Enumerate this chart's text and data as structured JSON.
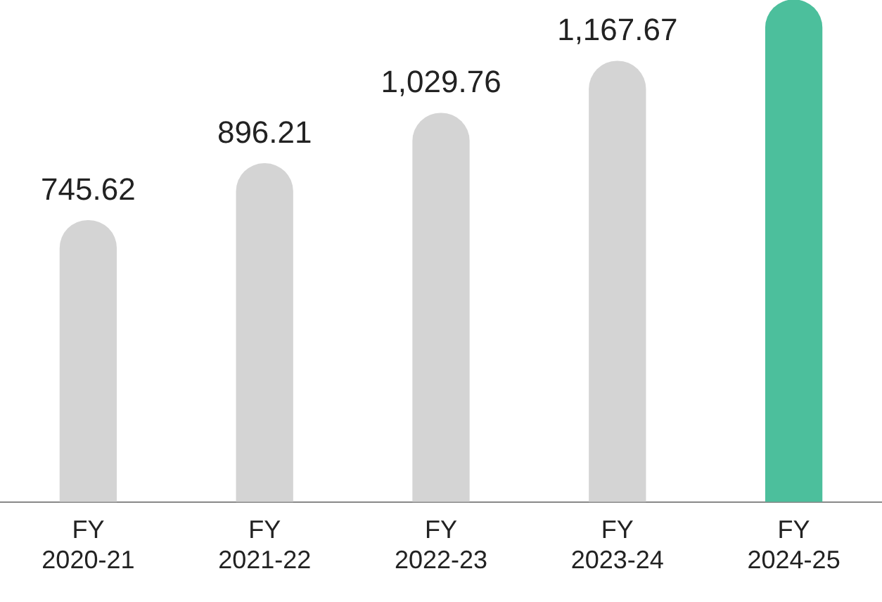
{
  "chart_data": {
    "type": "bar",
    "categories": [
      "FY 2020-21",
      "FY 2021-22",
      "FY 2022-23",
      "FY 2023-24",
      "FY 2024-25"
    ],
    "values": [
      745.62,
      896.21,
      1029.76,
      1167.67,
      1330
    ],
    "value_labels": [
      "745.62",
      "896.21",
      "1,029.76",
      "1,167.67",
      null
    ],
    "colors": [
      "#d4d4d4",
      "#d4d4d4",
      "#d4d4d4",
      "#d4d4d4",
      "#4cbf9c"
    ],
    "ylim": [
      0,
      1330
    ],
    "tick_labels": "x",
    "grid": false,
    "legend": false
  }
}
